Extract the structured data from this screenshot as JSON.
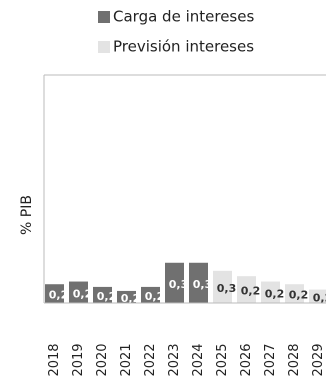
{
  "chart_data": {
    "type": "bar",
    "y_label": "% PIB",
    "categories": [
      "2018",
      "2019",
      "2020",
      "2021",
      "2022",
      "2023",
      "2024",
      "2025",
      "2026",
      "2027",
      "2028",
      "2029"
    ],
    "series": [
      {
        "name": "Carga de intereses",
        "color": "#707070",
        "values": [
          0.22,
          0.23,
          0.21,
          0.195,
          0.21,
          0.3,
          0.3,
          null,
          null,
          null,
          null,
          null
        ],
        "value_labels": [
          "0,2",
          "0,2",
          "0,2",
          "0,2",
          "0,2",
          "0,3",
          "0,3",
          null,
          null,
          null,
          null,
          null
        ]
      },
      {
        "name": "Previsión intereses",
        "color": "#e3e3e3",
        "values": [
          null,
          null,
          null,
          null,
          null,
          null,
          null,
          0.27,
          0.25,
          0.23,
          0.22,
          0.2
        ],
        "value_labels": [
          null,
          null,
          null,
          null,
          null,
          null,
          null,
          "0,3",
          "0,2",
          "0,2",
          "0,2",
          "0,2"
        ]
      }
    ],
    "ylim": [
      0.15,
      1.0
    ]
  }
}
